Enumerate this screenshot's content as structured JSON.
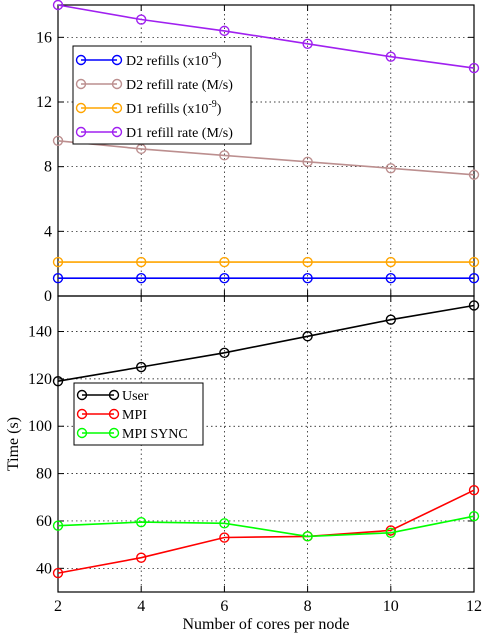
{
  "chart_data": [
    {
      "type": "line",
      "x": [
        2,
        4,
        6,
        8,
        10,
        12
      ],
      "xlim": [
        2,
        12
      ],
      "ylim": [
        0,
        18
      ],
      "yticks": [
        0,
        4,
        8,
        12,
        16
      ],
      "grid": true,
      "legend_position": "top-left",
      "series": [
        {
          "name": "D2 refills (x10^-9)",
          "legend_base": "D2 refills (x10",
          "legend_exp": "-9",
          "color": "#0000ff",
          "values": [
            1.1,
            1.1,
            1.1,
            1.1,
            1.1,
            1.1
          ]
        },
        {
          "name": "D2 refill rate (M/s)",
          "legend_base": "D2 refill rate (M/s)",
          "legend_exp": "",
          "color": "#bc8f8f",
          "values": [
            9.6,
            9.1,
            8.7,
            8.3,
            7.9,
            7.5
          ]
        },
        {
          "name": "D1 refills (x10^-9)",
          "legend_base": "D1 refills (x10",
          "legend_exp": "-9",
          "color": "#ffa500",
          "values": [
            2.1,
            2.1,
            2.1,
            2.1,
            2.1,
            2.1
          ]
        },
        {
          "name": "D1 refill rate (M/s)",
          "legend_base": "D1 refill rate (M/s)",
          "legend_exp": "",
          "color": "#a020f0",
          "values": [
            18.0,
            17.1,
            16.4,
            15.6,
            14.8,
            14.1
          ]
        }
      ]
    },
    {
      "type": "line",
      "x": [
        2,
        4,
        6,
        8,
        10,
        12
      ],
      "xlim": [
        2,
        12
      ],
      "ylim": [
        30,
        155
      ],
      "yticks": [
        40,
        60,
        80,
        100,
        120,
        140
      ],
      "xticks": [
        2,
        4,
        6,
        8,
        10,
        12
      ],
      "ylabel": "Time (s)",
      "xlabel": "Number of cores per node",
      "grid": true,
      "legend_position": "center-left",
      "series": [
        {
          "name": "User",
          "color": "#000000",
          "values": [
            119,
            125,
            131,
            138,
            145,
            151
          ]
        },
        {
          "name": "MPI",
          "color": "#ff0000",
          "values": [
            38,
            44.5,
            53,
            53.5,
            56,
            73
          ]
        },
        {
          "name": "MPI SYNC",
          "color": "#00ff00",
          "values": [
            58,
            59.5,
            59,
            53.5,
            55,
            62
          ]
        }
      ]
    }
  ]
}
